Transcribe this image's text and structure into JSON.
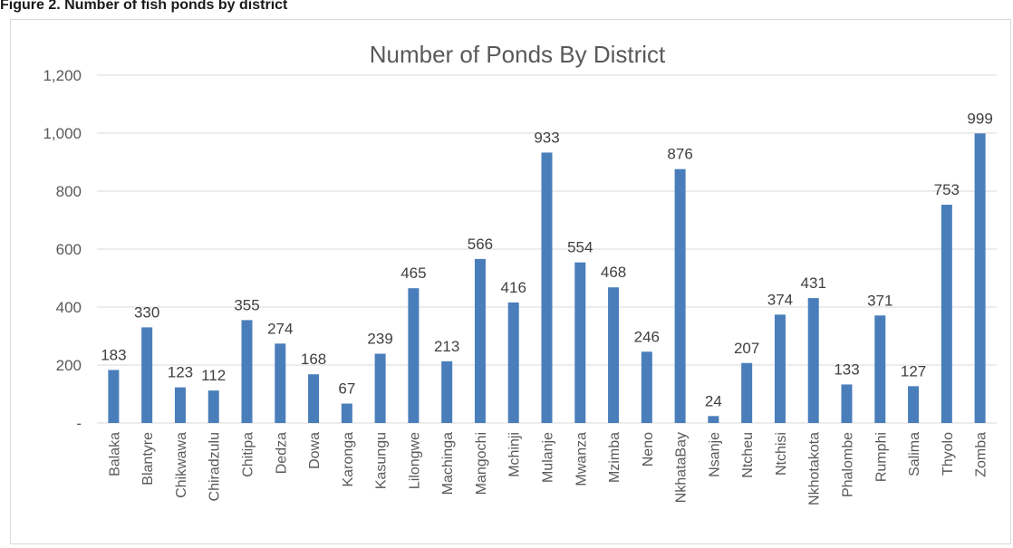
{
  "caption": "Figure 2. Number of fish ponds by district",
  "chart_data": {
    "type": "bar",
    "title": "Number of Ponds By District",
    "xlabel": "",
    "ylabel": "",
    "ylim": [
      0,
      1200
    ],
    "yticks": [
      "-",
      "200",
      "400",
      "600",
      "800",
      "1,000",
      "1,200"
    ],
    "grid": true,
    "legend": "none",
    "bar_color": "#4a7ebb",
    "categories": [
      "Balaka",
      "Blantyre",
      "Chikwawa",
      "Chiradzulu",
      "Chitipa",
      "Dedza",
      "Dowa",
      "Karonga",
      "Kasungu",
      "Lilongwe",
      "Machinga",
      "Mangochi",
      "Mchinji",
      "Mulanje",
      "Mwanza",
      "Mzimba",
      "Neno",
      "NkhataBay",
      "Nsanje",
      "Ntcheu",
      "Ntchisi",
      "Nkhotakota",
      "Phalombe",
      "Rumphi",
      "Salima",
      "Thyolo",
      "Zomba"
    ],
    "values": [
      183,
      330,
      123,
      112,
      355,
      274,
      168,
      67,
      239,
      465,
      213,
      566,
      416,
      933,
      554,
      468,
      246,
      876,
      24,
      207,
      374,
      431,
      133,
      371,
      127,
      753,
      999
    ]
  }
}
